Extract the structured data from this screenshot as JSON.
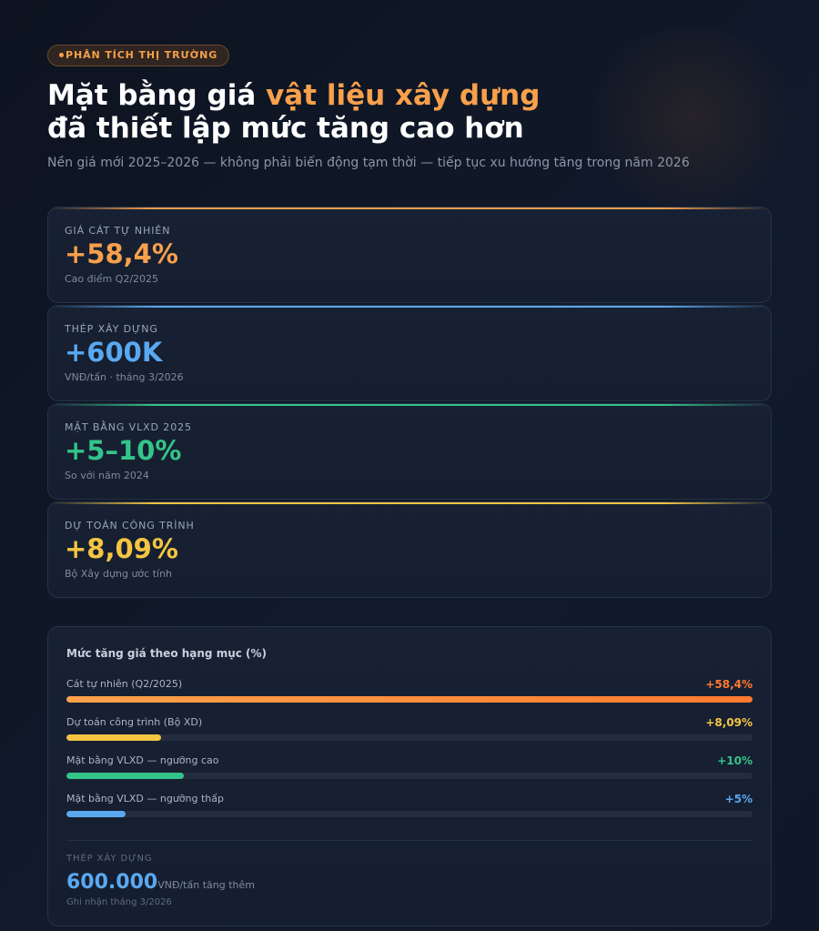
{
  "header": {
    "tag": "PHÂN TÍCH THỊ TRƯỜNG",
    "title_line1_prefix": "Mặt bằng giá ",
    "title_line1_accent": "vật liệu xây dựng",
    "title_line2": "đã thiết lập mức tăng cao hơn",
    "subtitle": "Nền giá mới 2025–2026 — không phải biến động tạm thời — tiếp tục xu hướng tăng trong năm 2026"
  },
  "stats": [
    {
      "label": "GIÁ CÁT TỰ NHIÊN",
      "value": "+58,4%",
      "note": "Cao điểm Q2/2025",
      "color": "#f8a04b"
    },
    {
      "label": "THÉP XÂY DỰNG",
      "value": "+600K",
      "note": "VNĐ/tấn · tháng 3/2026",
      "color": "#5aa8f0"
    },
    {
      "label": "MẶT BẰNG VLXD 2025",
      "value": "+5–10%",
      "note": "So với năm 2024",
      "color": "#34c48a"
    },
    {
      "label": "DỰ TOÁN CÔNG TRÌNH",
      "value": "+8,09%",
      "note": "Bộ Xây dựng ước tính",
      "color": "#f5c542"
    }
  ],
  "chart_data": {
    "type": "bar",
    "title": "Mức tăng giá theo hạng mục (%)",
    "categories": [
      "Cát tự nhiên (Q2/2025)",
      "Dự toán công trình (Bộ XD)",
      "Mặt bằng VLXD — ngưỡng cao",
      "Mặt bằng VLXD — ngưỡng thấp"
    ],
    "values": [
      58.4,
      8.09,
      10,
      5
    ],
    "value_labels": [
      "+58,4%",
      "+8,09%",
      "+10%",
      "+5%"
    ],
    "colors": [
      "#ff7a2e",
      "#f5c542",
      "#34c48a",
      "#5aa8f0"
    ],
    "xlim": [
      0,
      58.4
    ],
    "orientation": "horizontal"
  },
  "steel": {
    "label": "THÉP XÂY DỰNG",
    "value": "600.000",
    "unit": "VNĐ/tấn tăng thêm",
    "note": "Ghi nhận tháng 3/2026"
  }
}
